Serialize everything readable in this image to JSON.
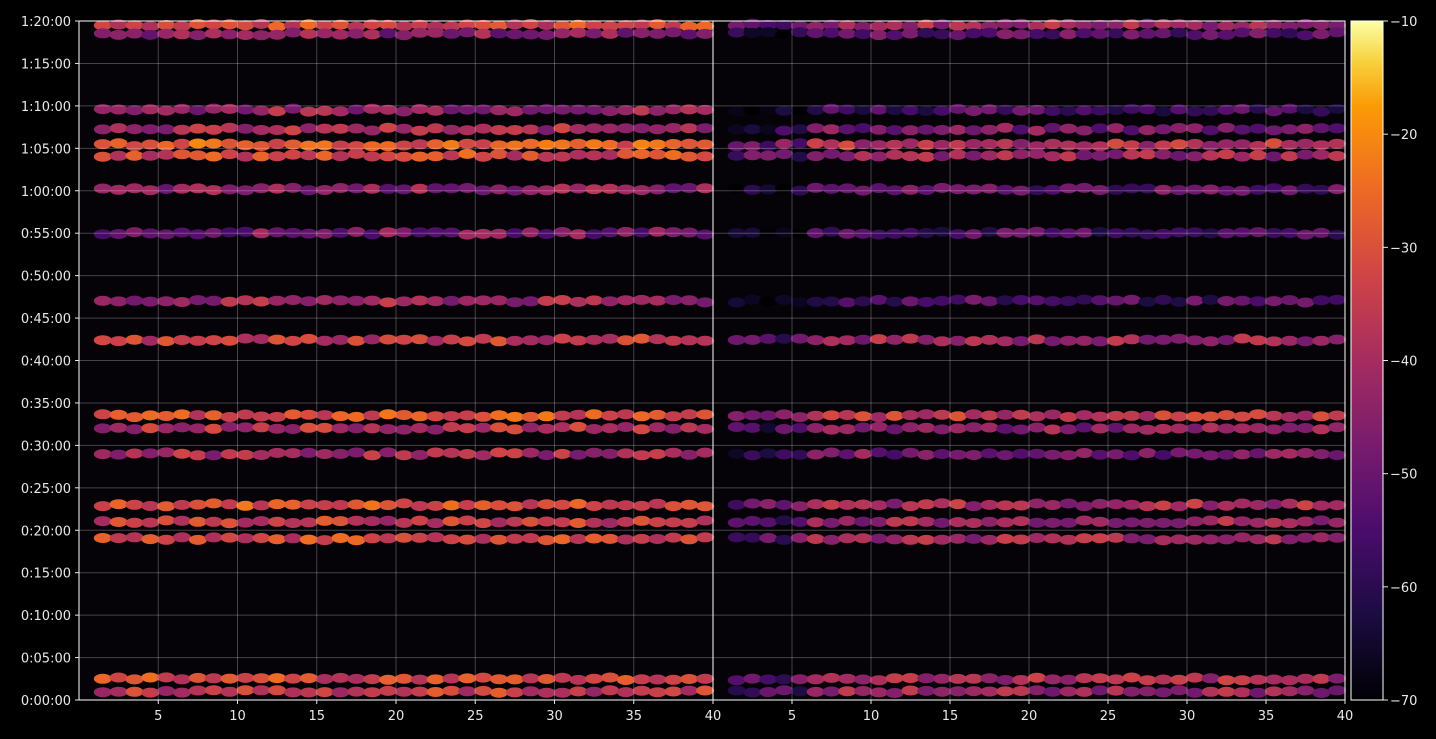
{
  "chart_data": {
    "type": "heatmap",
    "title": "",
    "xlabel": "",
    "ylabel": "",
    "panels": [
      {
        "name": "",
        "xlim": [
          1,
          40
        ],
        "xticks": [
          5,
          10,
          15,
          20,
          25,
          30,
          35,
          40
        ]
      },
      {
        "name": "",
        "xlim": [
          1,
          40
        ],
        "xticks": [
          5,
          10,
          15,
          20,
          25,
          30,
          35,
          40
        ]
      }
    ],
    "y_axis": {
      "unit": "time",
      "ylim_seconds": [
        0,
        4800
      ],
      "ticks": [
        "0:00:00",
        "0:05:00",
        "0:10:00",
        "0:15:00",
        "0:20:00",
        "0:25:00",
        "0:30:00",
        "0:35:00",
        "0:40:00",
        "0:45:00",
        "0:50:00",
        "0:55:00",
        "1:00:00",
        "1:05:00",
        "1:10:00",
        "1:15:00",
        "1:20:00"
      ]
    },
    "colorbar": {
      "colormap": "inferno",
      "range": [
        -70,
        -10
      ],
      "ticks": [
        "−10",
        "−20",
        "−30",
        "−40",
        "−50",
        "−60",
        "−70"
      ]
    },
    "grid": true,
    "bands": [
      {
        "time_s": 4770,
        "panel1": -32,
        "panel2": -40,
        "note": "top band"
      },
      {
        "time_s": 4710,
        "panel1": -45,
        "panel2": -52
      },
      {
        "time_s": 4170,
        "panel1": -42,
        "panel2": -55
      },
      {
        "time_s": 4035,
        "panel1": -40,
        "panel2": -48
      },
      {
        "time_s": 3925,
        "panel1": -28,
        "panel2": -38
      },
      {
        "time_s": 3850,
        "panel1": -32,
        "panel2": -42
      },
      {
        "time_s": 3610,
        "panel1": -45,
        "panel2": -52
      },
      {
        "time_s": 3300,
        "panel1": -48,
        "panel2": -55
      },
      {
        "time_s": 2820,
        "panel1": -42,
        "panel2": -55
      },
      {
        "time_s": 2545,
        "panel1": -35,
        "panel2": -42
      },
      {
        "time_s": 2010,
        "panel1": -30,
        "panel2": -35
      },
      {
        "time_s": 1920,
        "panel1": -38,
        "panel2": -45
      },
      {
        "time_s": 1740,
        "panel1": -40,
        "panel2": -48
      },
      {
        "time_s": 1380,
        "panel1": -30,
        "panel2": -40
      },
      {
        "time_s": 1260,
        "panel1": -35,
        "panel2": -42
      },
      {
        "time_s": 1140,
        "panel1": -32,
        "panel2": -40
      },
      {
        "time_s": 150,
        "panel1": -32,
        "panel2": -40
      },
      {
        "time_s": 60,
        "panel1": -35,
        "panel2": -42
      }
    ]
  }
}
